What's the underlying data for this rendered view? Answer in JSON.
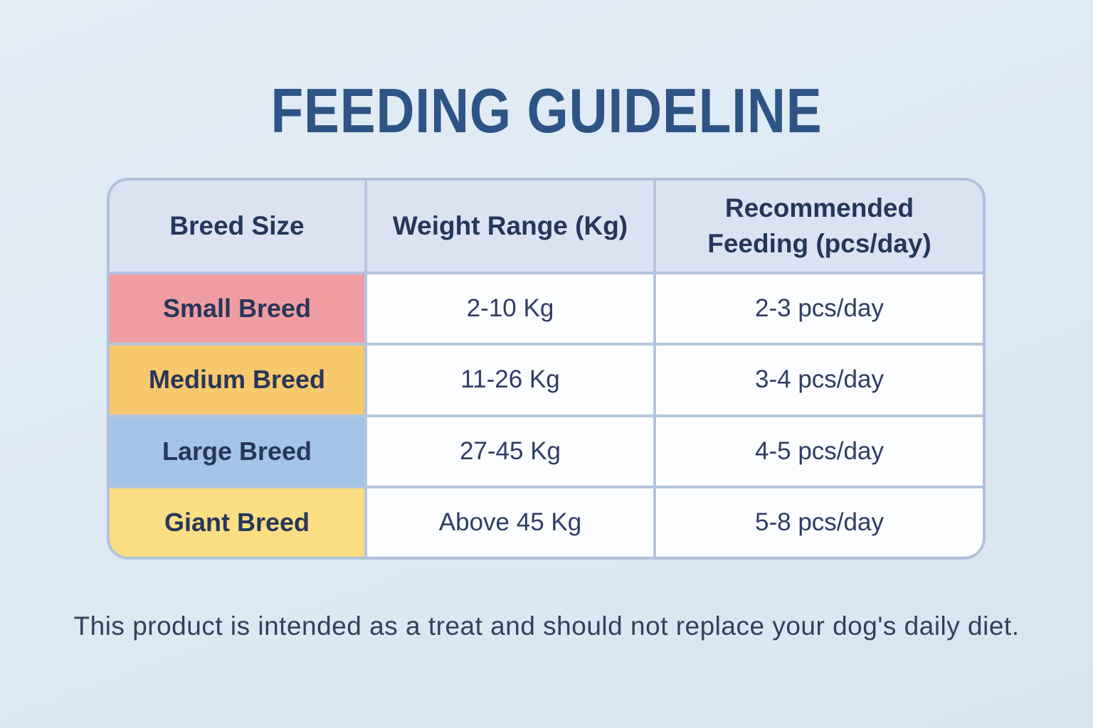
{
  "page": {
    "title": "FEEDING GUIDELINE",
    "footer_note": "This product is intended as a treat and should not replace your dog's daily diet.",
    "background_color": "#dde9f3",
    "title_color": "#2e5486",
    "grid_line_color": "#b4c5de",
    "header_bg_color": "#dbe3f2"
  },
  "table": {
    "headers": [
      "Breed Size",
      "Weight Range (Kg)",
      "Recommended Feeding (pcs/day)"
    ],
    "rows": [
      {
        "breed": "Small Breed",
        "color": "#f09da1",
        "weight": "2-10 Kg",
        "feeding": "2-3 pcs/day"
      },
      {
        "breed": "Medium Breed",
        "color": "#f8c86d",
        "weight": "11-26 Kg",
        "feeding": "3-4 pcs/day"
      },
      {
        "breed": "Large Breed",
        "color": "#a4c3e7",
        "weight": "27-45 Kg",
        "feeding": "4-5 pcs/day"
      },
      {
        "breed": "Giant Breed",
        "color": "#fade81",
        "weight": "Above 45 Kg",
        "feeding": "5-8 pcs/day"
      }
    ]
  },
  "chart_data": {
    "type": "table",
    "title": "FEEDING GUIDELINE",
    "columns": [
      "Breed Size",
      "Weight Range (Kg)",
      "Recommended Feeding (pcs/day)"
    ],
    "rows": [
      [
        "Small Breed",
        "2-10 Kg",
        "2-3 pcs/day"
      ],
      [
        "Medium Breed",
        "11-26 Kg",
        "3-4 pcs/day"
      ],
      [
        "Large Breed",
        "27-45 Kg",
        "4-5 pcs/day"
      ],
      [
        "Giant Breed",
        "Above 45 Kg",
        "5-8 pcs/day"
      ]
    ],
    "row_colors": [
      "#f09da1",
      "#f8c86d",
      "#a4c3e7",
      "#fade81"
    ],
    "footnote": "This product is intended as a treat and should not replace your dog's daily diet."
  }
}
